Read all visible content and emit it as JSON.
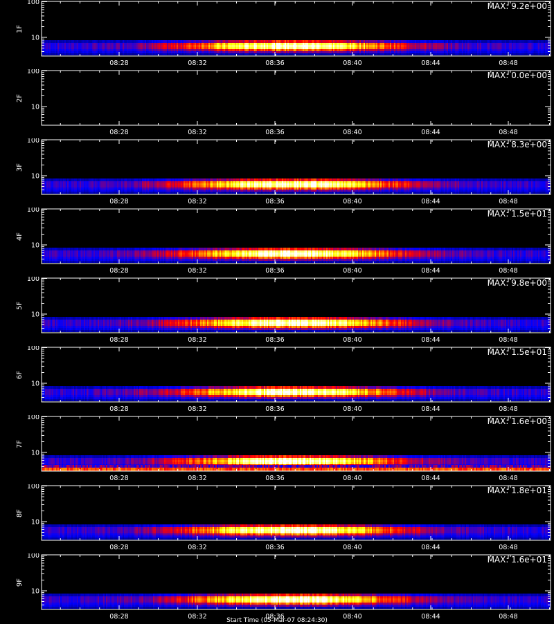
{
  "chart_data": {
    "type": "heatmap",
    "x_ticks": [
      "08:28",
      "08:32",
      "08:36",
      "08:40",
      "08:44",
      "08:48"
    ],
    "y_ticks": [
      "100",
      "10"
    ],
    "y_scale": "log",
    "ylim": [
      3,
      110
    ],
    "panels": [
      {
        "label": "1F",
        "max_text": "MAX: 9.2e+00",
        "max": 9.2
      },
      {
        "label": "2F",
        "max_text": "MAX: 0.0e+00",
        "max": 0.0
      },
      {
        "label": "3F",
        "max_text": "MAX: 8.3e+00",
        "max": 8.3
      },
      {
        "label": "4F",
        "max_text": "MAX: 1.5e+01",
        "max": 15
      },
      {
        "label": "5F",
        "max_text": "MAX: 9.8e+00",
        "max": 9.8
      },
      {
        "label": "6F",
        "max_text": "MAX: 1.5e+01",
        "max": 15
      },
      {
        "label": "7F",
        "max_text": "MAX: 1.6e+00",
        "max": 1.6
      },
      {
        "label": "8F",
        "max_text": "MAX: 1.8e+01",
        "max": 18
      },
      {
        "label": "9F",
        "max_text": "MAX: 1.6e+01",
        "max": 16
      }
    ],
    "colormap": [
      "#000000",
      "#0000ff",
      "#ff0000",
      "#ffff00",
      "#ffffff"
    ]
  },
  "x_title": "Start Time (05-Mar-07 08:24:30)"
}
